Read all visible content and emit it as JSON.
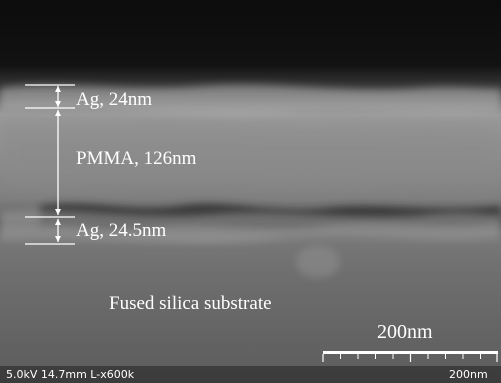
{
  "image": {
    "description_colors": {
      "background_dark": "#121212",
      "film_band": "#8a8a8a",
      "substrate": "#6d6d6d",
      "annotation": "#ffffff"
    }
  },
  "annotations": {
    "ag_top": "Ag, 24nm",
    "pmma": "PMMA, 126nm",
    "ag_bottom": "Ag, 24.5nm",
    "substrate": "Fused silica substrate",
    "scale_bar_label": "200nm"
  },
  "info_bar": {
    "left": "5.0kV 14.7mm L-x600k",
    "right": "200nm"
  }
}
